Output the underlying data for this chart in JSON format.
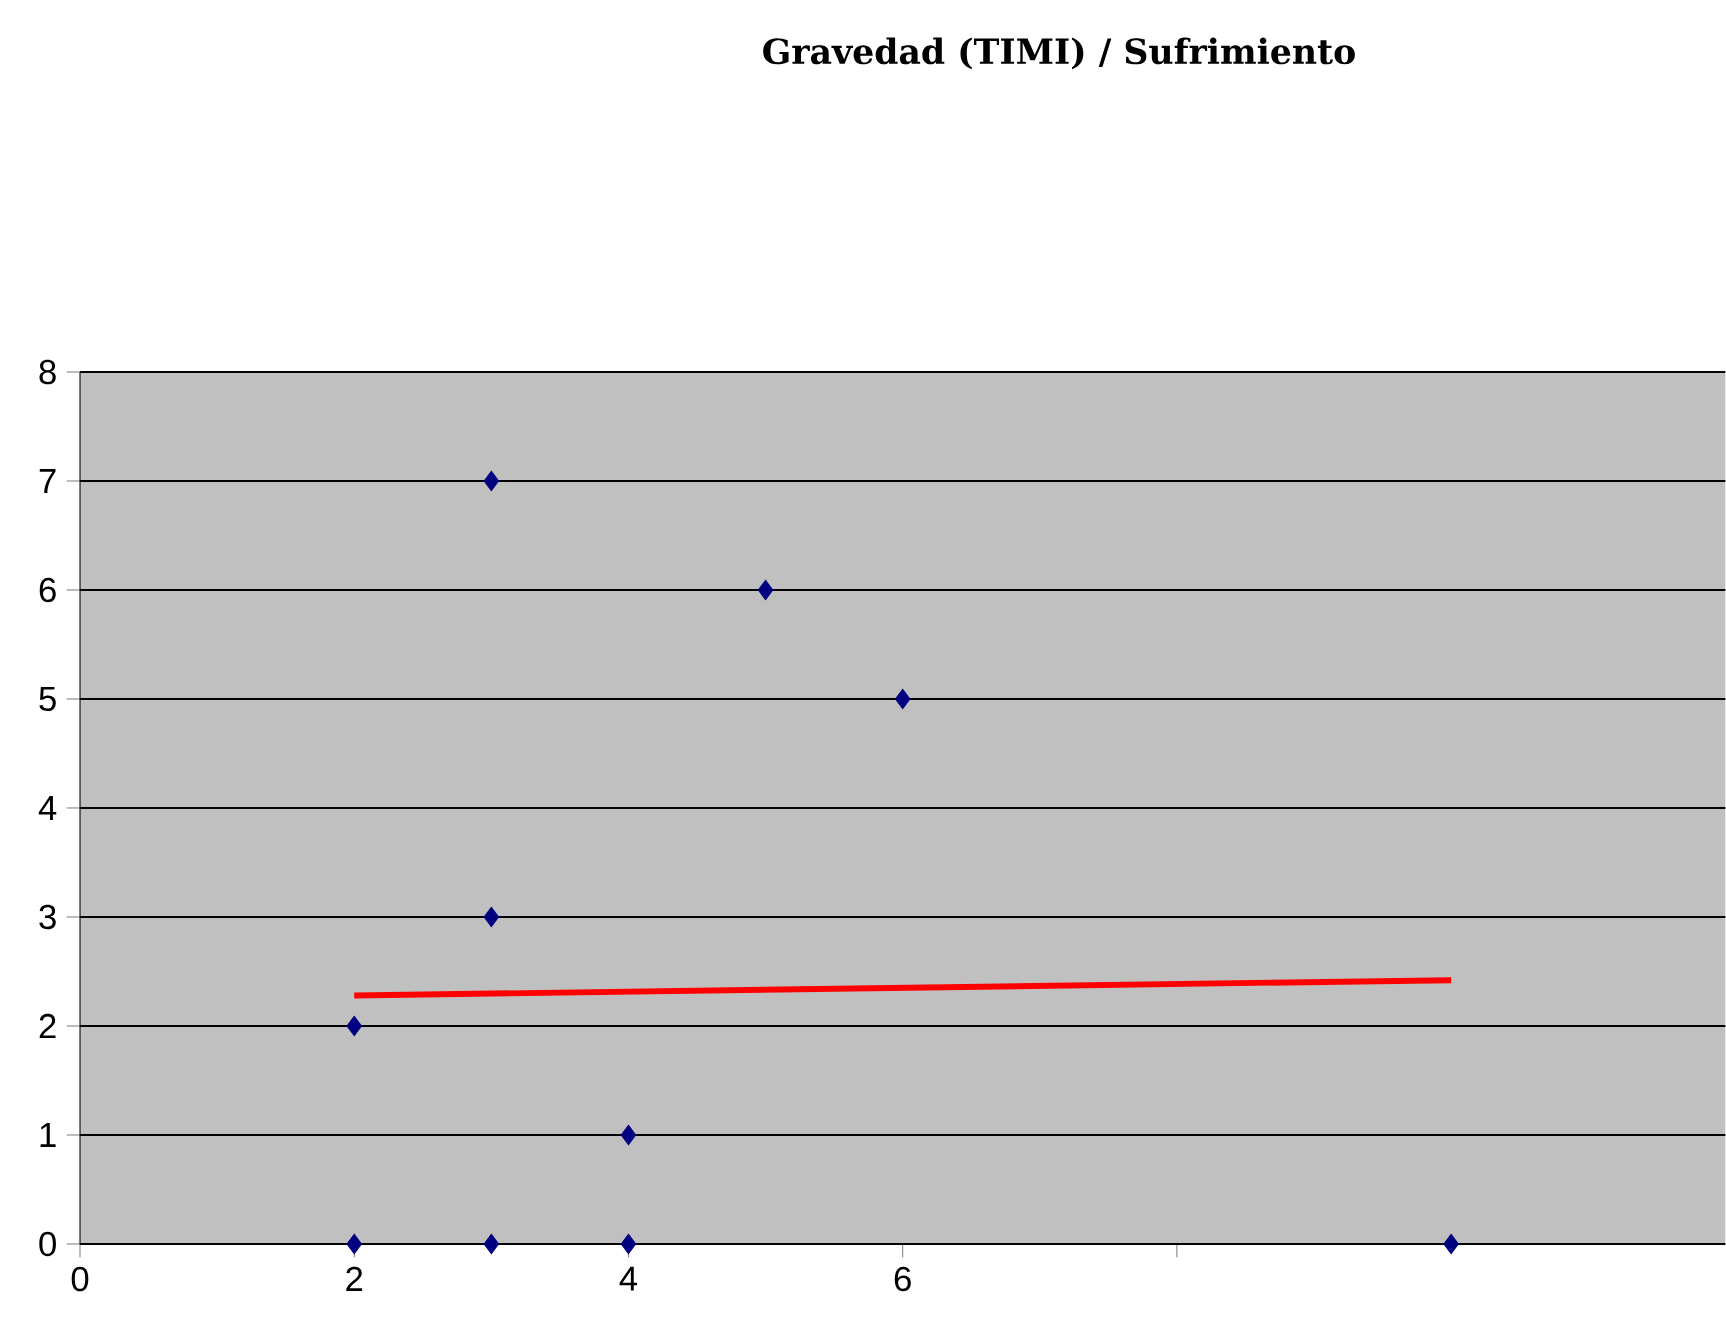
{
  "chart_data": {
    "type": "scatter",
    "title": "Gravedad (TIMI) / Sufrimiento",
    "series": [
      {
        "type": "scatter",
        "color": "#000080",
        "marker": "diamond",
        "x": [
          2,
          3,
          4,
          10,
          2,
          3,
          4,
          3,
          5,
          6
        ],
        "values": [
          0,
          0,
          0,
          0,
          2,
          3,
          1,
          7,
          6,
          5
        ]
      },
      {
        "type": "line",
        "color": "#ff0000",
        "marker": "none",
        "line_style": "solid",
        "x": [
          2,
          10
        ],
        "values": [
          2.28,
          2.42
        ]
      }
    ],
    "xlim": [
      0,
      12
    ],
    "ylim": [
      0,
      8
    ],
    "xticks": [
      0,
      2,
      4,
      6,
      {
        "value": 8,
        "label": null
      }
    ],
    "yticks": [
      0,
      1,
      2,
      3,
      4,
      5,
      6,
      7,
      8
    ],
    "grid": "y"
  }
}
